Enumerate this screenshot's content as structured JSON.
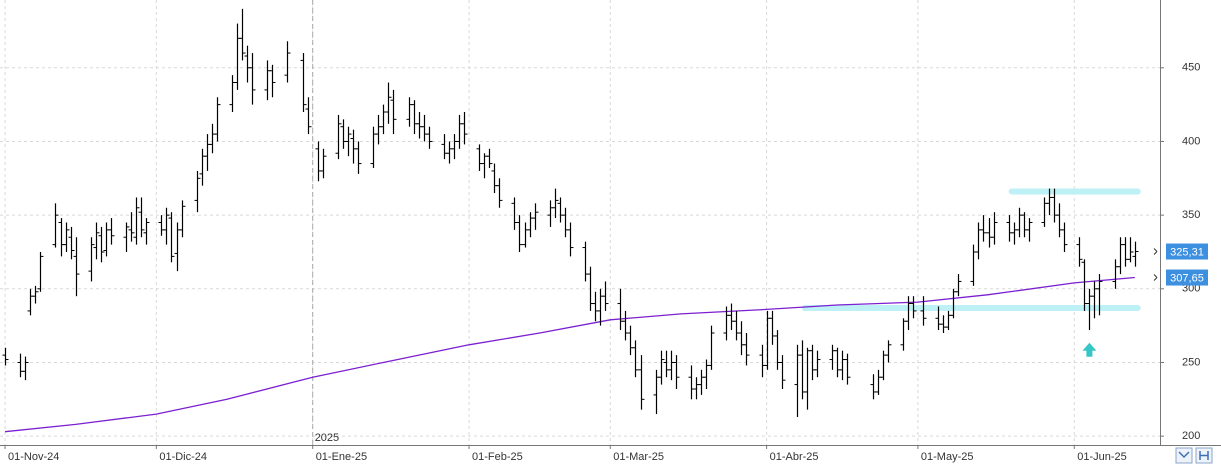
{
  "chart_data": {
    "type": "ohlc",
    "xlim": [
      "2024-10-31",
      "2025-06-18"
    ],
    "ylim": [
      194,
      496
    ],
    "yticks": [
      200,
      250,
      300,
      350,
      400,
      450
    ],
    "xticks": [
      {
        "value": "2024-11-01",
        "label": "01-Nov-24"
      },
      {
        "value": "2024-12-01",
        "label": "01-Dic-24"
      },
      {
        "value": "2025-01-01",
        "label": "01-Ene-25"
      },
      {
        "value": "2025-02-01",
        "label": "01-Feb-25"
      },
      {
        "value": "2025-03-01",
        "label": "01-Mar-25"
      },
      {
        "value": "2025-04-01",
        "label": "01-Abr-25"
      },
      {
        "value": "2025-05-01",
        "label": "01-May-25"
      },
      {
        "value": "2025-06-01",
        "label": "01-Jun-25"
      }
    ],
    "grid": true,
    "year_marker": {
      "x": "2025-01-01",
      "label": "2025"
    },
    "bar_color": "#000000",
    "x": [
      "2024-11-01",
      "2024-11-04",
      "2024-11-05",
      "2024-11-06",
      "2024-11-07",
      "2024-11-08",
      "2024-11-11",
      "2024-11-12",
      "2024-11-13",
      "2024-11-14",
      "2024-11-15",
      "2024-11-18",
      "2024-11-19",
      "2024-11-20",
      "2024-11-21",
      "2024-11-22",
      "2024-11-25",
      "2024-11-26",
      "2024-11-27",
      "2024-11-28",
      "2024-11-29",
      "2024-12-02",
      "2024-12-03",
      "2024-12-04",
      "2024-12-05",
      "2024-12-06",
      "2024-12-09",
      "2024-12-10",
      "2024-12-11",
      "2024-12-12",
      "2024-12-13",
      "2024-12-16",
      "2024-12-17",
      "2024-12-18",
      "2024-12-19",
      "2024-12-20",
      "2024-12-23",
      "2024-12-24",
      "2024-12-27",
      "2024-12-30",
      "2024-12-31",
      "2025-01-02",
      "2025-01-03",
      "2025-01-06",
      "2025-01-07",
      "2025-01-08",
      "2025-01-09",
      "2025-01-10",
      "2025-01-13",
      "2025-01-14",
      "2025-01-15",
      "2025-01-16",
      "2025-01-17",
      "2025-01-20",
      "2025-01-21",
      "2025-01-22",
      "2025-01-23",
      "2025-01-24",
      "2025-01-27",
      "2025-01-28",
      "2025-01-29",
      "2025-01-30",
      "2025-01-31",
      "2025-02-03",
      "2025-02-04",
      "2025-02-05",
      "2025-02-06",
      "2025-02-07",
      "2025-02-10",
      "2025-02-11",
      "2025-02-12",
      "2025-02-13",
      "2025-02-14",
      "2025-02-17",
      "2025-02-18",
      "2025-02-19",
      "2025-02-20",
      "2025-02-21",
      "2025-02-24",
      "2025-02-25",
      "2025-02-26",
      "2025-02-27",
      "2025-02-28",
      "2025-03-03",
      "2025-03-04",
      "2025-03-05",
      "2025-03-06",
      "2025-03-07",
      "2025-03-10",
      "2025-03-11",
      "2025-03-12",
      "2025-03-13",
      "2025-03-14",
      "2025-03-17",
      "2025-03-18",
      "2025-03-19",
      "2025-03-20",
      "2025-03-21",
      "2025-03-24",
      "2025-03-25",
      "2025-03-26",
      "2025-03-27",
      "2025-03-28",
      "2025-03-31",
      "2025-04-01",
      "2025-04-02",
      "2025-04-03",
      "2025-04-04",
      "2025-04-07",
      "2025-04-08",
      "2025-04-09",
      "2025-04-10",
      "2025-04-11",
      "2025-04-14",
      "2025-04-15",
      "2025-04-16",
      "2025-04-17",
      "2025-04-22",
      "2025-04-23",
      "2025-04-24",
      "2025-04-25",
      "2025-04-28",
      "2025-04-29",
      "2025-04-30",
      "2025-05-02",
      "2025-05-05",
      "2025-05-06",
      "2025-05-07",
      "2025-05-08",
      "2025-05-09",
      "2025-05-12",
      "2025-05-13",
      "2025-05-14",
      "2025-05-15",
      "2025-05-16",
      "2025-05-19",
      "2025-05-20",
      "2025-05-21",
      "2025-05-22",
      "2025-05-23",
      "2025-05-26",
      "2025-05-27",
      "2025-05-28",
      "2025-05-29",
      "2025-05-30",
      "2025-06-02",
      "2025-06-03",
      "2025-06-04",
      "2025-06-05",
      "2025-06-06",
      "2025-06-09",
      "2025-06-10",
      "2025-06-11",
      "2025-06-12",
      "2025-06-13"
    ],
    "open": [
      255,
      250,
      244,
      285,
      295,
      300,
      330,
      345,
      330,
      335,
      322,
      312,
      328,
      336,
      326,
      340,
      335,
      340,
      335,
      352,
      338,
      345,
      340,
      348,
      324,
      340,
      360,
      378,
      390,
      398,
      405,
      425,
      440,
      470,
      458,
      450,
      435,
      448,
      445,
      455,
      422,
      395,
      380,
      392,
      410,
      400,
      402,
      395,
      385,
      405,
      410,
      420,
      428,
      415,
      425,
      412,
      410,
      405,
      398,
      392,
      395,
      400,
      412,
      395,
      385,
      390,
      380,
      370,
      358,
      345,
      330,
      340,
      348,
      350,
      355,
      358,
      350,
      340,
      328,
      310,
      290,
      285,
      295,
      290,
      278,
      270,
      260,
      245,
      228,
      240,
      250,
      245,
      250,
      240,
      232,
      235,
      240,
      248,
      270,
      282,
      278,
      270,
      262,
      255,
      248,
      280,
      268,
      250,
      235,
      255,
      230,
      258,
      245,
      252,
      258,
      245,
      252,
      235,
      230,
      240,
      255,
      262,
      278,
      290,
      285,
      280,
      276,
      274,
      282,
      298,
      305,
      325,
      340,
      338,
      335,
      345,
      338,
      340,
      350,
      340,
      345,
      358,
      362,
      350,
      340,
      330,
      318,
      290,
      295,
      300,
      305,
      315,
      330,
      320,
      322
    ],
    "high": [
      260,
      256,
      254,
      300,
      302,
      325,
      358,
      348,
      345,
      342,
      335,
      335,
      345,
      342,
      345,
      348,
      345,
      352,
      362,
      362,
      348,
      350,
      355,
      352,
      345,
      360,
      380,
      395,
      405,
      412,
      430,
      445,
      480,
      490,
      465,
      460,
      455,
      452,
      468,
      460,
      430,
      400,
      395,
      418,
      415,
      410,
      408,
      400,
      410,
      418,
      425,
      440,
      435,
      430,
      428,
      420,
      418,
      410,
      405,
      400,
      405,
      418,
      420,
      398,
      392,
      395,
      385,
      375,
      362,
      350,
      345,
      352,
      358,
      360,
      368,
      362,
      355,
      345,
      332,
      315,
      298,
      300,
      305,
      300,
      285,
      275,
      265,
      255,
      245,
      258,
      258,
      258,
      255,
      248,
      240,
      245,
      252,
      275,
      288,
      290,
      285,
      278,
      270,
      262,
      285,
      285,
      272,
      255,
      262,
      265,
      260,
      262,
      258,
      262,
      260,
      258,
      256,
      242,
      245,
      258,
      265,
      280,
      295,
      295,
      295,
      288,
      282,
      285,
      300,
      310,
      330,
      345,
      350,
      348,
      352,
      350,
      345,
      355,
      352,
      348,
      362,
      368,
      368,
      358,
      345,
      335,
      320,
      300,
      305,
      310,
      320,
      335,
      335,
      335,
      332
    ],
    "low": [
      248,
      240,
      238,
      282,
      290,
      298,
      328,
      322,
      325,
      320,
      295,
      305,
      320,
      318,
      322,
      330,
      325,
      332,
      330,
      335,
      330,
      336,
      330,
      318,
      312,
      335,
      352,
      370,
      380,
      392,
      400,
      420,
      435,
      455,
      440,
      425,
      428,
      430,
      440,
      420,
      405,
      373,
      375,
      388,
      395,
      390,
      385,
      378,
      382,
      398,
      405,
      412,
      405,
      410,
      405,
      402,
      400,
      395,
      388,
      385,
      388,
      395,
      398,
      380,
      375,
      382,
      365,
      355,
      340,
      325,
      328,
      335,
      340,
      342,
      348,
      345,
      335,
      322,
      305,
      285,
      278,
      275,
      285,
      272,
      265,
      255,
      240,
      218,
      215,
      235,
      240,
      238,
      232,
      225,
      225,
      228,
      232,
      245,
      265,
      272,
      265,
      255,
      248,
      240,
      245,
      262,
      245,
      232,
      213,
      225,
      218,
      238,
      240,
      245,
      240,
      238,
      235,
      225,
      228,
      238,
      250,
      258,
      272,
      280,
      275,
      272,
      270,
      272,
      280,
      295,
      302,
      320,
      332,
      328,
      330,
      332,
      330,
      335,
      335,
      332,
      342,
      350,
      345,
      335,
      325,
      315,
      285,
      272,
      280,
      282,
      300,
      310,
      315,
      318,
      315
    ],
    "close": [
      252,
      244,
      250,
      295,
      298,
      322,
      350,
      330,
      340,
      326,
      310,
      330,
      338,
      325,
      340,
      336,
      342,
      338,
      355,
      340,
      345,
      340,
      350,
      322,
      340,
      356,
      375,
      390,
      398,
      405,
      425,
      440,
      470,
      460,
      450,
      435,
      448,
      440,
      460,
      425,
      410,
      380,
      390,
      412,
      400,
      405,
      395,
      385,
      405,
      410,
      420,
      430,
      415,
      425,
      412,
      410,
      405,
      400,
      392,
      395,
      400,
      412,
      405,
      385,
      390,
      385,
      370,
      360,
      345,
      330,
      340,
      348,
      352,
      355,
      360,
      350,
      340,
      328,
      310,
      290,
      285,
      295,
      290,
      278,
      270,
      260,
      245,
      225,
      240,
      252,
      245,
      250,
      240,
      232,
      235,
      240,
      248,
      270,
      282,
      278,
      270,
      262,
      255,
      248,
      280,
      268,
      250,
      238,
      255,
      230,
      258,
      245,
      252,
      258,
      245,
      252,
      240,
      230,
      240,
      255,
      262,
      278,
      290,
      285,
      280,
      276,
      274,
      282,
      298,
      305,
      325,
      340,
      338,
      335,
      345,
      338,
      340,
      350,
      340,
      345,
      358,
      362,
      350,
      340,
      330,
      320,
      290,
      295,
      300,
      305,
      315,
      330,
      320,
      325,
      325.31
    ],
    "moving_average": {
      "color": "#7b1fd1",
      "x": [
        "2024-11-01",
        "2024-11-15",
        "2024-12-01",
        "2024-12-15",
        "2025-01-01",
        "2025-01-15",
        "2025-02-01",
        "2025-02-15",
        "2025-03-01",
        "2025-03-15",
        "2025-04-01",
        "2025-04-15",
        "2025-05-01",
        "2025-05-15",
        "2025-06-01",
        "2025-06-13"
      ],
      "values": [
        203,
        208,
        215,
        225,
        240,
        250,
        262,
        270,
        279,
        283,
        286,
        289,
        291,
        296,
        304,
        307.65
      ]
    },
    "price_labels": [
      {
        "value": 325.31,
        "label": "325,31",
        "color": "#3d8fe0"
      },
      {
        "value": 307.65,
        "label": "307,65",
        "color": "#3d8fe0"
      }
    ],
    "bands": [
      {
        "value": 366,
        "from": "2025-05-19",
        "to": "2025-06-13",
        "color": "#bdf1f6"
      },
      {
        "value": 287,
        "from": "2025-04-08",
        "to": "2025-06-13",
        "color": "#bdf1f6"
      }
    ],
    "markers": [
      {
        "x": "2025-06-04",
        "value": 258,
        "shape": "arrow-up",
        "color": "#36c6c6"
      }
    ]
  }
}
